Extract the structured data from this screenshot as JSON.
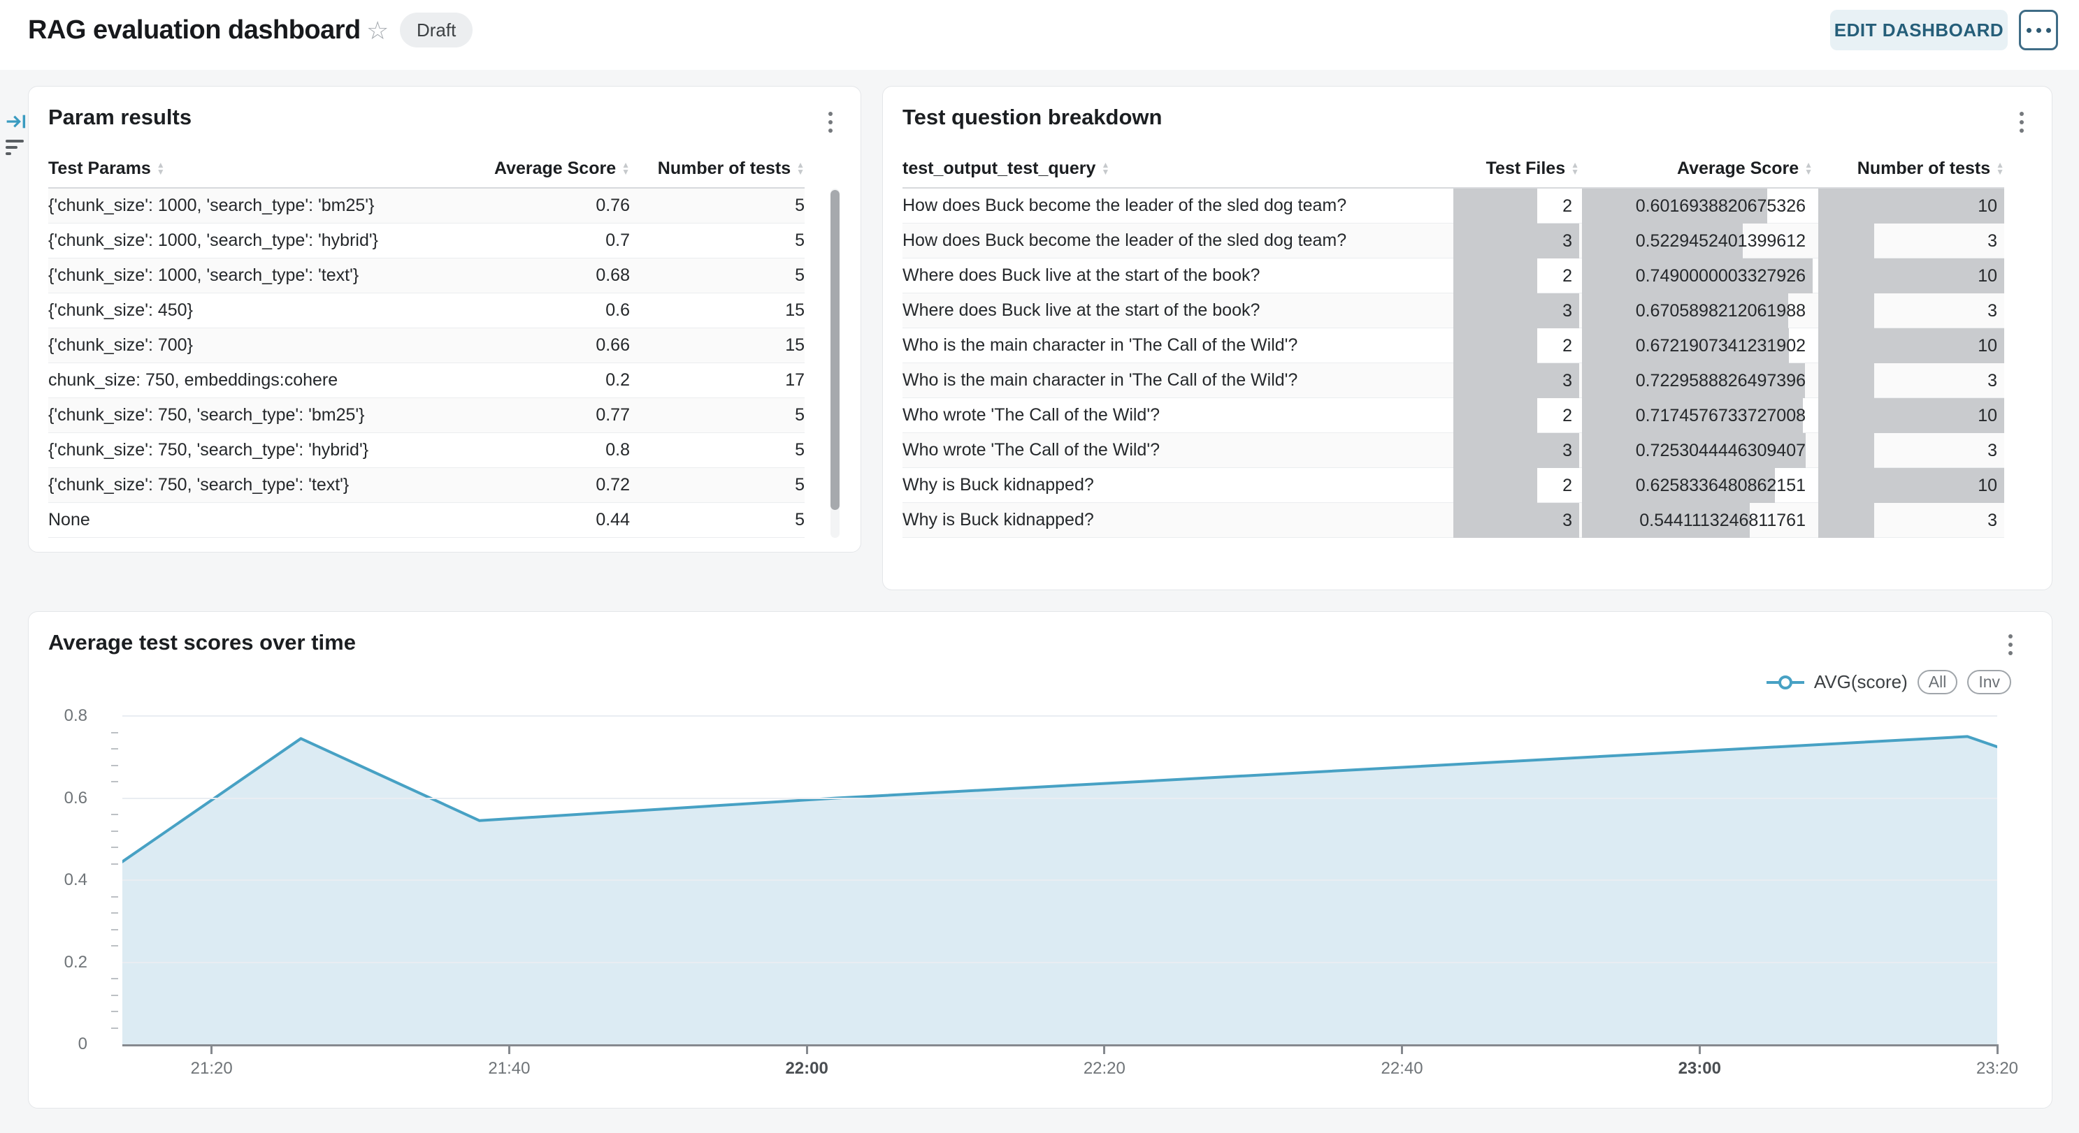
{
  "header": {
    "title": "RAG evaluation dashboard",
    "status_badge": "Draft",
    "edit_button": "EDIT DASHBOARD",
    "icons": [
      "star-icon",
      "more-options-icon"
    ]
  },
  "side_toolbar": {
    "icons": [
      "collapse-right-icon",
      "filter-icon"
    ]
  },
  "param_results": {
    "title": "Param results",
    "columns": [
      {
        "label": "Test Params",
        "align": "left"
      },
      {
        "label": "Average Score",
        "align": "right"
      },
      {
        "label": "Number of tests",
        "align": "right"
      }
    ],
    "rows": [
      {
        "params": "{'chunk_size': 1000, 'search_type': 'bm25'}",
        "avg": "0.76",
        "tests": "5"
      },
      {
        "params": "{'chunk_size': 1000, 'search_type': 'hybrid'}",
        "avg": "0.7",
        "tests": "5"
      },
      {
        "params": "{'chunk_size': 1000, 'search_type': 'text'}",
        "avg": "0.68",
        "tests": "5"
      },
      {
        "params": "{'chunk_size': 450}",
        "avg": "0.6",
        "tests": "15"
      },
      {
        "params": "{'chunk_size': 700}",
        "avg": "0.66",
        "tests": "15"
      },
      {
        "params": "chunk_size: 750, embeddings:cohere",
        "avg": "0.2",
        "tests": "17"
      },
      {
        "params": "{'chunk_size': 750, 'search_type': 'bm25'}",
        "avg": "0.77",
        "tests": "5"
      },
      {
        "params": "{'chunk_size': 750, 'search_type': 'hybrid'}",
        "avg": "0.8",
        "tests": "5"
      },
      {
        "params": "{'chunk_size': 750, 'search_type': 'text'}",
        "avg": "0.72",
        "tests": "5"
      },
      {
        "params": "None",
        "avg": "0.44",
        "tests": "5"
      }
    ]
  },
  "question_breakdown": {
    "title": "Test question breakdown",
    "columns": [
      {
        "label": "test_output_test_query",
        "align": "left"
      },
      {
        "label": "Test Files",
        "align": "right"
      },
      {
        "label": "Average Score",
        "align": "right"
      },
      {
        "label": "Number of tests",
        "align": "right"
      }
    ],
    "bar_max": {
      "files": 3,
      "avg": 0.7490000003327926,
      "tests": 10
    },
    "bar_color": "#c9cbce",
    "rows": [
      {
        "query": "How does Buck become the leader of the sled dog team?",
        "files": "2",
        "avg": "0.6016938820675326",
        "tests": "10"
      },
      {
        "query": "How does Buck become the leader of the sled dog team?",
        "files": "3",
        "avg": "0.5229452401399612",
        "tests": "3"
      },
      {
        "query": "Where does Buck live at the start of the book?",
        "files": "2",
        "avg": "0.7490000003327926",
        "tests": "10"
      },
      {
        "query": "Where does Buck live at the start of the book?",
        "files": "3",
        "avg": "0.6705898212061988",
        "tests": "3"
      },
      {
        "query": "Who is the main character in 'The Call of the Wild'?",
        "files": "2",
        "avg": "0.6721907341231902",
        "tests": "10"
      },
      {
        "query": "Who is the main character in 'The Call of the Wild'?",
        "files": "3",
        "avg": "0.7229588826497396",
        "tests": "3"
      },
      {
        "query": "Who wrote 'The Call of the Wild'?",
        "files": "2",
        "avg": "0.7174576733727008",
        "tests": "10"
      },
      {
        "query": "Who wrote 'The Call of the Wild'?",
        "files": "3",
        "avg": "0.7253044446309407",
        "tests": "3"
      },
      {
        "query": "Why is Buck kidnapped?",
        "files": "2",
        "avg": "0.6258336480862151",
        "tests": "10"
      },
      {
        "query": "Why is Buck kidnapped?",
        "files": "3",
        "avg": "0.5441113246811761",
        "tests": "3"
      }
    ]
  },
  "chart_panel": {
    "title": "Average test scores over time",
    "legend_series": "AVG(score)",
    "legend_buttons": [
      "All",
      "Inv"
    ]
  },
  "chart_data": {
    "type": "area",
    "title": "Average test scores over time",
    "series": [
      {
        "name": "AVG(score)",
        "points": [
          [
            "21:14",
            0.445
          ],
          [
            "21:26",
            0.745
          ],
          [
            "21:38",
            0.545
          ],
          [
            "22:02",
            0.6
          ],
          [
            "23:18",
            0.75
          ],
          [
            "23:20",
            0.725
          ]
        ]
      }
    ],
    "x_domain": [
      "21:14",
      "23:20"
    ],
    "x_ticks": [
      {
        "label": "21:20",
        "bold": false
      },
      {
        "label": "21:40",
        "bold": false
      },
      {
        "label": "22:00",
        "bold": true
      },
      {
        "label": "22:20",
        "bold": false
      },
      {
        "label": "22:40",
        "bold": false
      },
      {
        "label": "23:00",
        "bold": true
      },
      {
        "label": "23:20",
        "bold": false
      }
    ],
    "y_ticks": [
      0,
      0.2,
      0.4,
      0.6,
      0.8
    ],
    "y_minor_step": 0.04,
    "ylim": [
      0,
      0.8
    ],
    "grid": true,
    "legend_position": "top-right",
    "line_color": "#47a1c4",
    "fill_color": "#dcebf3"
  }
}
